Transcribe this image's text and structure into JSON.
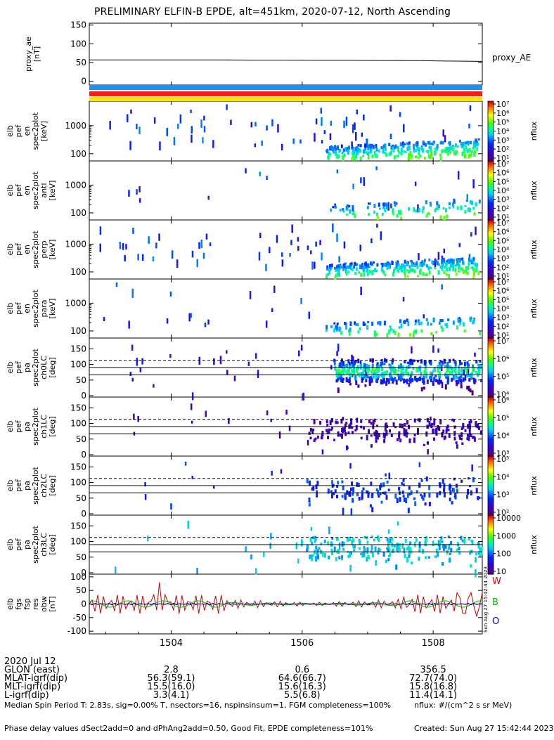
{
  "title": "PRELIMINARY ELFIN-B EPDE, alt=451km, 2020-07-12, North Ascending",
  "colors": {
    "blue_bar": "#1f8ff0",
    "red_bar": "#ff1a1a",
    "yellow_bar": "#ffe600"
  },
  "panels": [
    {
      "ylabel": [
        "proxy_ae",
        "[nT]"
      ],
      "yticks": [
        "150",
        "100",
        "50",
        "0"
      ],
      "side_label": "proxy_AE"
    },
    {
      "ylabel": [
        "elb",
        "pef",
        "en",
        "spec2plot",
        "[keV]"
      ],
      "yticks": [
        "1000",
        "100"
      ]
    },
    {
      "ylabel": [
        "elb",
        "pef",
        "en",
        "spec2plot",
        "anti",
        "[keV]"
      ],
      "yticks": [
        "1000",
        "100"
      ]
    },
    {
      "ylabel": [
        "elb",
        "pef",
        "en",
        "spec2plot",
        "perp",
        "[keV]"
      ],
      "yticks": [
        "1000",
        "100"
      ]
    },
    {
      "ylabel": [
        "elb",
        "pef",
        "en",
        "spec2plot",
        "para",
        "[keV]"
      ],
      "yticks": [
        "1000",
        "100"
      ]
    },
    {
      "ylabel": [
        "elb",
        "pef",
        "pa",
        "spec2plot",
        "ch0LC",
        "[deg]"
      ],
      "yticks": [
        "150",
        "100",
        "50",
        "0"
      ]
    },
    {
      "ylabel": [
        "elb",
        "pef",
        "pa",
        "spec2plot",
        "ch1LC",
        "[deg]"
      ],
      "yticks": [
        "150",
        "100",
        "50",
        "0"
      ]
    },
    {
      "ylabel": [
        "elb",
        "pef",
        "pa",
        "spec2plot",
        "ch2LC",
        "[deg]"
      ],
      "yticks": [
        "150",
        "100",
        "50",
        "0"
      ]
    },
    {
      "ylabel": [
        "elb",
        "pef",
        "pa",
        "spec2plot",
        "ch3LC",
        "[deg]"
      ],
      "yticks": [
        "150",
        "100",
        "50",
        "0"
      ]
    },
    {
      "ylabel": [
        "elb",
        "fgs",
        "fsp",
        "res",
        "obw",
        "[nT]"
      ],
      "yticks": [
        "100",
        "50",
        "0",
        "-50",
        "-100"
      ]
    }
  ],
  "colorbars": [
    {
      "label": "nflux",
      "ticks": [
        "10⁷",
        "10⁶",
        "10⁵",
        "10⁴",
        "10³",
        "10²",
        "10¹"
      ]
    },
    {
      "label": "nflux",
      "ticks": [
        "10⁷",
        "10⁶",
        "10⁵",
        "10⁴",
        "10³",
        "10²",
        "10¹"
      ]
    },
    {
      "label": "nflux",
      "ticks": [
        "10⁷",
        "10⁶",
        "10⁵",
        "10⁴",
        "10³",
        "10²",
        "10¹"
      ]
    },
    {
      "label": "nflux",
      "ticks": [
        "10⁷",
        "10⁶",
        "10⁵",
        "10⁴",
        "10³",
        "10²",
        "10¹"
      ]
    },
    {
      "label": "nflux",
      "ticks": [
        "10⁷",
        "10⁶",
        "10⁵",
        "10⁴"
      ]
    },
    {
      "label": "nflux",
      "ticks": [
        "10⁶",
        "10⁵",
        "10⁴",
        "10³"
      ]
    },
    {
      "label": "nflux",
      "ticks": [
        "10⁵",
        "10⁴",
        "10³",
        "10²"
      ]
    },
    {
      "label": "nflux",
      "ticks": [
        "10000",
        "1000",
        "100",
        "10"
      ]
    }
  ],
  "fgs_legend": [
    "W",
    "B",
    "O"
  ],
  "rotated_stamp": "Sun Aug 27 15:42:44 2023",
  "chart_data": {
    "type": "line",
    "x_ticks": [
      "1504",
      "1506",
      "1508"
    ],
    "x_tick_values_min": [
      1504,
      1506,
      1508
    ],
    "x_range_min": [
      1502.75,
      1508.75
    ],
    "proxy_ae": {
      "ylim": [
        -10,
        155
      ],
      "values": [
        57,
        57,
        57,
        57,
        57,
        56.5,
        56.5,
        56,
        56,
        55.5,
        55,
        54,
        53
      ]
    },
    "pa_lines_deg": {
      "dashed": 113,
      "solid": [
        90,
        67
      ]
    },
    "fgs": {
      "ylim": [
        -110,
        110
      ],
      "series": [
        {
          "name": "W",
          "color": "#cc0000",
          "amplitude": 35,
          "burst_value": 80
        },
        {
          "name": "B",
          "color": "#00bb00",
          "amplitude": 12
        },
        {
          "name": "O",
          "color": "#0000cc",
          "amplitude": 3
        }
      ]
    }
  },
  "info_rows": [
    {
      "label": "2020 Jul 12",
      "v1": "",
      "v2": "",
      "v3": ""
    },
    {
      "label": "GLON (east)",
      "v1": "2.8",
      "v2": "0.6",
      "v3": "356.5"
    },
    {
      "label": "MLAT-igrf(dip)",
      "v1": "56.3(59.1)",
      "v2": "64.6(66.7)",
      "v3": "72.7(74.0)"
    },
    {
      "label": "MLT-igrf(dip)",
      "v1": "15.5(16.0)",
      "v2": "15.6(16.3)",
      "v3": "15.8(16.8)"
    },
    {
      "label": "L-igrf(dip)",
      "v1": "3.3(4.1)",
      "v2": "5.5(6.8)",
      "v3": "11.4(14.1)"
    }
  ],
  "footer": {
    "line1_left": "Median Spin Period T: 2.83s, sig=0.00% T, nsectors=16, nspinsinsum=1, FGM completeness=100%",
    "line2_left": "Phase delay values dSect2add=0 and dPhAng2add=0.50, Good Fit, EPDE completeness=101%",
    "line1_right": "nflux: #/(cm^2 s sr MeV)",
    "line2_right": "Created: Sun Aug 27 15:42:44 2023"
  }
}
